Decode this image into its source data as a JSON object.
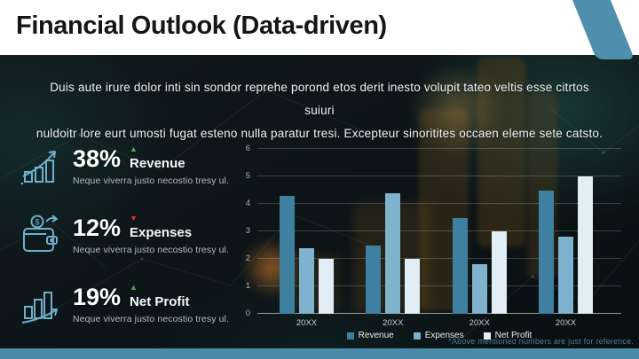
{
  "slide": {
    "title": "Financial Outlook (Data-driven)",
    "intro_line1": "Duis aute irure dolor inti sin sondor reprehe porond etos derit inesto volupit tateo veltis esse citrtos suiuri",
    "intro_line2": "nuldoitr lore eurt umosti fugat esteno nulla paratur tresi. Excepteur sinoritites occaen eleme sete catsto.",
    "footnote": "*Above mentioned numbers are just for reference."
  },
  "stats": [
    {
      "value": "38%",
      "direction": "up",
      "label": "Revenue",
      "caption": "Neque viverra justo necostio tresy ul.",
      "icon": "growth-chart-icon"
    },
    {
      "value": "12%",
      "direction": "down",
      "label": "Expenses",
      "caption": "Neque viverra justo necostio tresy ul.",
      "icon": "wallet-icon"
    },
    {
      "value": "19%",
      "direction": "up",
      "label": "Net Profit",
      "caption": "Neque viverra justo necostio tresy ul.",
      "icon": "bar-growth-icon"
    }
  ],
  "colors": {
    "accent_blue": "#4f8fae",
    "footer_bar": "#4a8aab",
    "up_green": "#44b04a",
    "down_red": "#e3321f",
    "icon_stroke": "#6fb0ca"
  },
  "chart_data": {
    "type": "bar",
    "categories": [
      "20XX",
      "20XX",
      "20XX",
      "20XX"
    ],
    "series": [
      {
        "name": "Revenue",
        "color": "#3f80a1",
        "values": [
          4.3,
          2.5,
          3.5,
          4.5
        ]
      },
      {
        "name": "Expenses",
        "color": "#7fb3cd",
        "values": [
          2.4,
          4.4,
          1.8,
          2.8
        ]
      },
      {
        "name": "Net Profit",
        "color": "#e2eef5",
        "values": [
          2.0,
          2.0,
          3.0,
          5.0
        ]
      }
    ],
    "ylim": [
      0,
      6
    ],
    "yticks": [
      0,
      1,
      2,
      3,
      4,
      5,
      6
    ],
    "grid": true,
    "legend_position": "bottom"
  }
}
